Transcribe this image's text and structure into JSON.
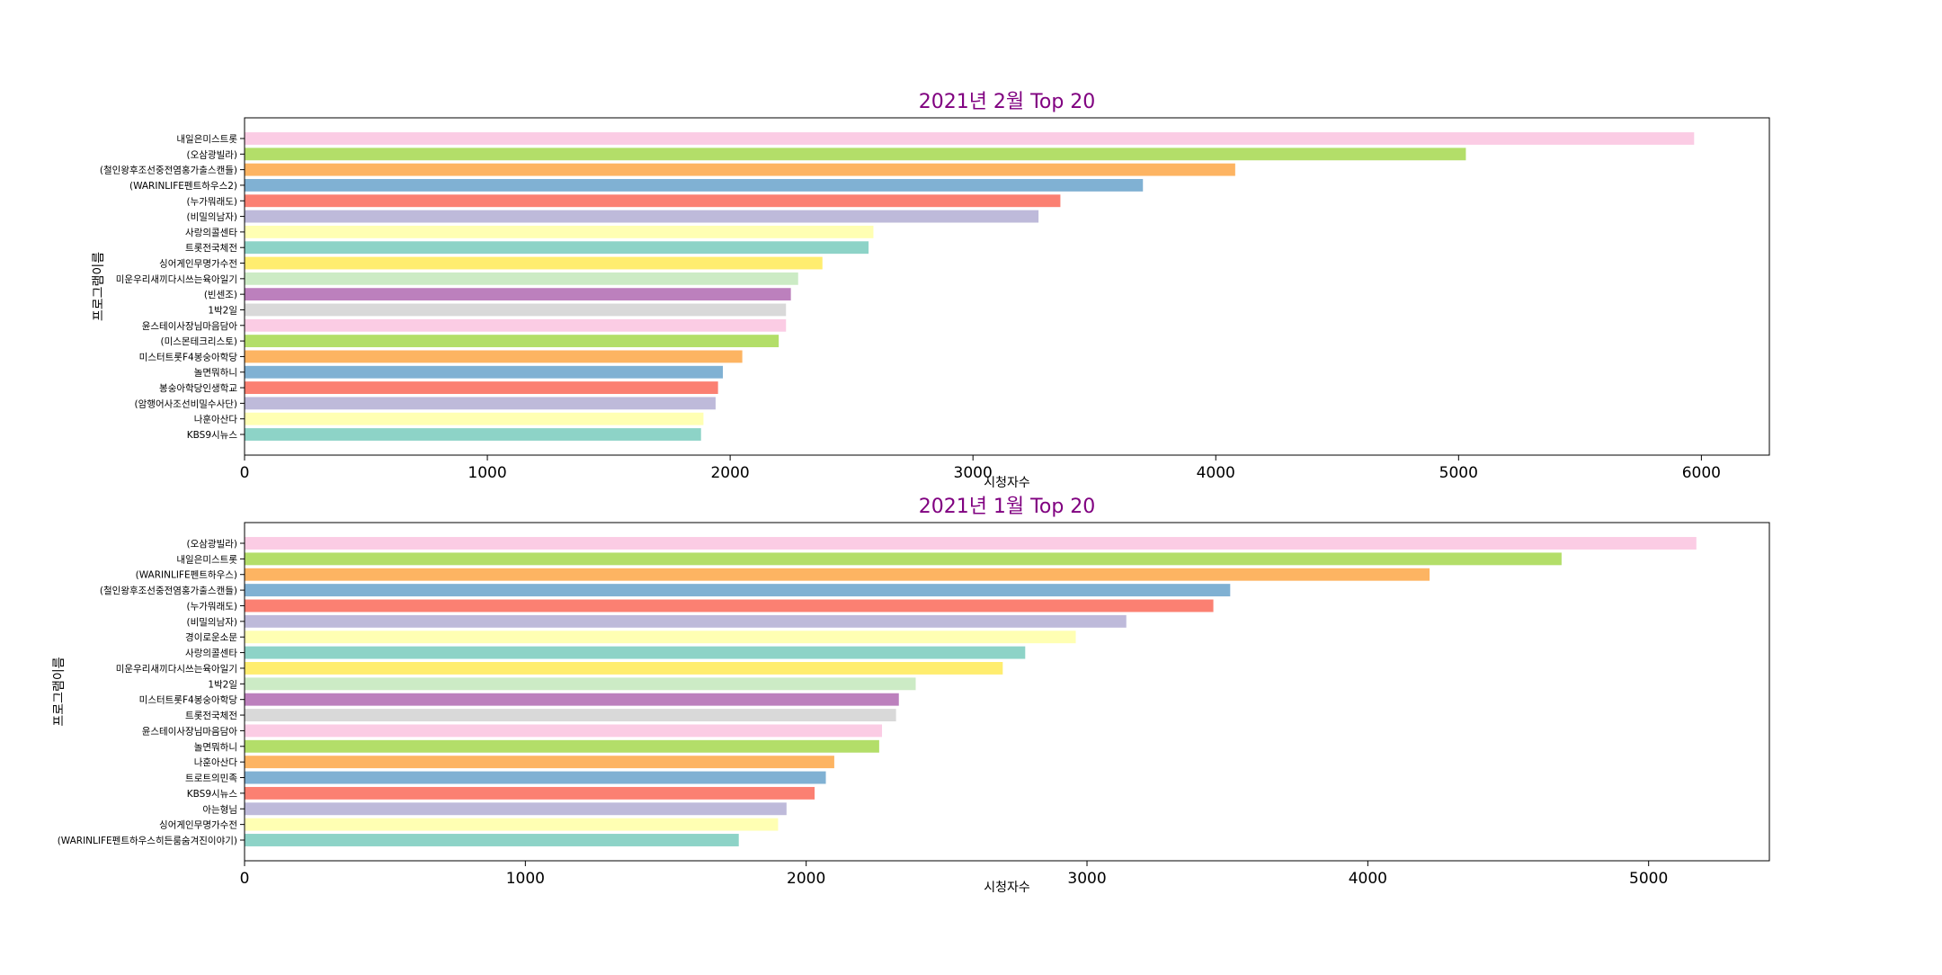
{
  "colors": {
    "title": "#800080",
    "palette": [
      "#fbcce4",
      "#b3de69",
      "#fdb462",
      "#80b1d3",
      "#fb8072",
      "#bebada",
      "#ffffb3",
      "#8dd3c7",
      "#ffed6f",
      "#ccebc5",
      "#bc80bd",
      "#d9d9d9"
    ]
  },
  "chart_data": [
    {
      "type": "bar",
      "orientation": "horizontal",
      "title": "2021년 2월 Top 20",
      "xlabel": "시청자수",
      "ylabel": "프로그램이름",
      "xlim": [
        0,
        6280
      ],
      "xticks": [
        0,
        1000,
        2000,
        3000,
        4000,
        5000,
        6000
      ],
      "categories": [
        "내일은미스트롯",
        "(오삼광빌라)",
        "(철인왕후조선중전염홍가출스캔들)",
        "(WARINLIFE펜트하우스2)",
        "(누가뭐래도)",
        "(비밀의남자)",
        "사랑의콜센타",
        "트롯전국체전",
        "싱어게인무명가수전",
        "미운우리새끼다시쓰는육아일기",
        "(빈센조)",
        "1박2일",
        "윤스테이사장님마음담아",
        "(미스몬테크리스토)",
        "미스터트롯F4봉숭아학당",
        "놀면뭐하니",
        "봉숭아학당인생학교",
        "(암행어사조선비밀수사단)",
        "나훈아산다",
        "KBS9시뉴스"
      ],
      "values": [
        5970,
        5030,
        4080,
        3700,
        3360,
        3270,
        2590,
        2570,
        2380,
        2280,
        2250,
        2230,
        2230,
        2200,
        2050,
        1970,
        1950,
        1940,
        1890,
        1880
      ]
    },
    {
      "type": "bar",
      "orientation": "horizontal",
      "title": "2021년 1월 Top 20",
      "xlabel": "시청자수",
      "ylabel": "프로그램이름",
      "xlim": [
        0,
        5430
      ],
      "xticks": [
        0,
        1000,
        2000,
        3000,
        4000,
        5000
      ],
      "categories": [
        "(오삼광빌라)",
        "내일은미스트롯",
        "(WARINLIFE펜트하우스)",
        "(철인왕후조선중전염홍가출스캔들)",
        "(누가뭐래도)",
        "(비밀의남자)",
        "경이로운소문",
        "사랑의콜센타",
        "미운우리새끼다시쓰는육아일기",
        "1박2일",
        "미스터트롯F4봉숭아학당",
        "트롯전국체전",
        "윤스테이사장님마음담아",
        "놀면뭐하니",
        "나훈아산다",
        "트로트의민족",
        "KBS9시뉴스",
        "아는형님",
        "싱어게인무명가수전",
        "(WARINLIFE펜트하우스히든룸숨겨진이야기)"
      ],
      "values": [
        5170,
        4690,
        4220,
        3510,
        3450,
        3140,
        2960,
        2780,
        2700,
        2390,
        2330,
        2320,
        2270,
        2260,
        2100,
        2070,
        2030,
        1930,
        1900,
        1760
      ]
    }
  ]
}
